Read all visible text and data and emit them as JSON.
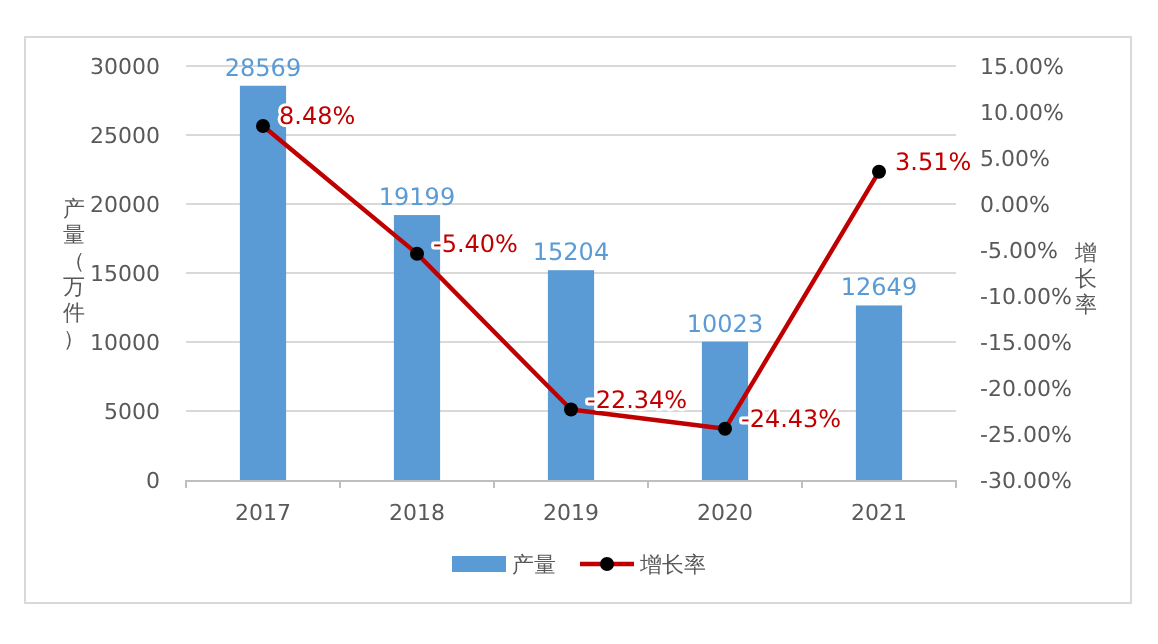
{
  "chart_data": {
    "type": "bar",
    "ylabel": "产量（万件）",
    "y2label": "增长率",
    "categories": [
      "2017",
      "2018",
      "2019",
      "2020",
      "2021"
    ],
    "series": [
      {
        "name": "产量",
        "color": "#5b9bd5",
        "values": [
          28569,
          19199,
          15204,
          10023,
          12649
        ],
        "value_labels": [
          "28569",
          "19199",
          "15204",
          "10023",
          "12649"
        ]
      },
      {
        "name": "增长率",
        "type": "line",
        "axis": "y2",
        "color": "#c00000",
        "marker": "circle",
        "values": [
          8.48,
          -5.4,
          -22.34,
          -24.43,
          3.51
        ],
        "value_labels": [
          "8.48%",
          "-5.40%",
          "-22.34%",
          "-24.43%",
          "3.51%"
        ]
      }
    ],
    "ylim": [
      0,
      30000
    ],
    "yticks": [
      0,
      5000,
      10000,
      15000,
      20000,
      25000,
      30000
    ],
    "y2lim": [
      -30,
      15
    ],
    "y2ticks": [
      {
        "value": -30,
        "label": "-30.00%"
      },
      {
        "value": -25,
        "label": "-25.00%"
      },
      {
        "value": -20,
        "label": "-20.00%"
      },
      {
        "value": -15,
        "label": "-15.00%"
      },
      {
        "value": -10,
        "label": "-10.00%"
      },
      {
        "value": -5,
        "label": "-5.00%"
      },
      {
        "value": 0,
        "label": "0.00%"
      },
      {
        "value": 5,
        "label": "5.00%"
      },
      {
        "value": 10,
        "label": "10.00%"
      },
      {
        "value": 15,
        "label": "15.00%"
      }
    ],
    "grid": "y",
    "legend": "bottom"
  }
}
